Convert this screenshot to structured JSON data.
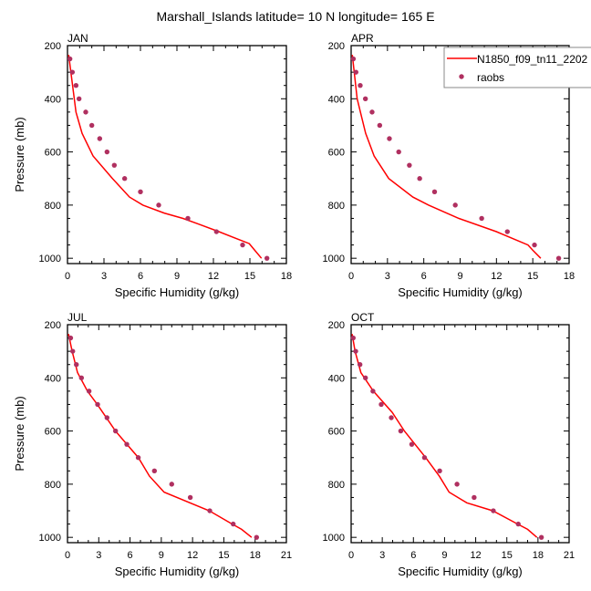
{
  "title": "Marshall_Islands  latitude= 10 N longitude= 165 E",
  "colors": {
    "model": "#ff0000",
    "obs": "#b03060"
  },
  "legend": {
    "placement": "top-right",
    "model_label": "N1850_f09_tn11_2202",
    "obs_label": "raobs"
  },
  "chart_data": [
    {
      "type": "line",
      "title": "JAN",
      "xlabel": "Specific Humidity (g/kg)",
      "ylabel": "Pressure (mb)",
      "xlim": [
        0,
        18
      ],
      "ylim": [
        200,
        1020
      ],
      "y_reversed": true,
      "xticks": [
        "0",
        "3",
        "6",
        "9",
        "12",
        "15",
        "18"
      ],
      "yticks": [
        "200",
        "400",
        "600",
        "800",
        "1000"
      ],
      "series": [
        {
          "name": "N1850_f09_tn11_2202",
          "kind": "line",
          "x": [
            0.1,
            0.7,
            1.2,
            2.1,
            3.7,
            5.1,
            6.2,
            7.95,
            9.5,
            10.7,
            12.45,
            14.95,
            15.4,
            15.95
          ],
          "y": [
            235,
            450,
            530,
            615,
            700,
            770,
            800,
            830,
            850,
            870,
            900,
            945,
            970,
            1000
          ]
        },
        {
          "name": "raobs",
          "kind": "scatter",
          "x": [
            0.2,
            0.4,
            0.7,
            0.95,
            1.5,
            2.0,
            2.65,
            3.25,
            3.85,
            4.7,
            6.0,
            7.5,
            9.9,
            12.25,
            14.4,
            16.4
          ],
          "y": [
            250,
            300,
            350,
            400,
            450,
            500,
            550,
            600,
            650,
            700,
            750,
            800,
            850,
            900,
            950,
            1000
          ]
        }
      ]
    },
    {
      "type": "line",
      "title": "APR",
      "xlabel": "Specific Humidity (g/kg)",
      "ylabel": "",
      "xlim": [
        0,
        18
      ],
      "ylim": [
        200,
        1020
      ],
      "y_reversed": true,
      "xticks": [
        "0",
        "3",
        "6",
        "9",
        "12",
        "15",
        "18"
      ],
      "yticks": [
        "200",
        "400",
        "600",
        "800",
        "1000"
      ],
      "series": [
        {
          "name": "N1850_f09_tn11_2202",
          "kind": "line",
          "x": [
            0.1,
            0.5,
            1.2,
            1.9,
            3.1,
            5.1,
            6.4,
            8.9,
            12.0,
            14.6,
            15.0,
            15.66
          ],
          "y": [
            235,
            400,
            530,
            615,
            700,
            770,
            800,
            850,
            900,
            950,
            970,
            1000
          ]
        },
        {
          "name": "raobs",
          "kind": "scatter",
          "x": [
            0.18,
            0.4,
            0.75,
            1.18,
            1.73,
            2.36,
            3.16,
            3.93,
            4.81,
            5.66,
            6.89,
            8.6,
            10.78,
            12.9,
            15.14,
            17.14
          ],
          "y": [
            250,
            300,
            350,
            400,
            450,
            500,
            550,
            600,
            650,
            700,
            750,
            800,
            850,
            900,
            950,
            1000
          ]
        }
      ]
    },
    {
      "type": "line",
      "title": "JUL",
      "xlabel": "Specific Humidity (g/kg)",
      "ylabel": "Pressure (mb)",
      "xlim": [
        0,
        21
      ],
      "ylim": [
        200,
        1020
      ],
      "y_reversed": true,
      "xticks": [
        "0",
        "3",
        "6",
        "9",
        "12",
        "15",
        "18",
        "21"
      ],
      "yticks": [
        "200",
        "400",
        "600",
        "800",
        "1000"
      ],
      "series": [
        {
          "name": "N1850_f09_tn11_2202",
          "kind": "line",
          "x": [
            0.1,
            0.45,
            0.96,
            1.92,
            2.86,
            4.6,
            6.8,
            7.87,
            9.27,
            13.6,
            15.8,
            16.7,
            17.67
          ],
          "y": [
            235,
            300,
            380,
            450,
            500,
            600,
            700,
            770,
            830,
            900,
            950,
            970,
            1000
          ]
        },
        {
          "name": "raobs",
          "kind": "scatter",
          "x": [
            0.3,
            0.5,
            0.85,
            1.34,
            2.07,
            2.89,
            3.79,
            4.61,
            5.69,
            6.79,
            8.34,
            10.0,
            11.78,
            13.65,
            15.9,
            18.14
          ],
          "y": [
            250,
            300,
            350,
            400,
            450,
            500,
            550,
            600,
            650,
            700,
            750,
            800,
            850,
            900,
            950,
            1000
          ]
        }
      ]
    },
    {
      "type": "line",
      "title": "OCT",
      "xlabel": "Specific Humidity (g/kg)",
      "ylabel": "",
      "xlim": [
        0,
        21
      ],
      "ylim": [
        200,
        1020
      ],
      "y_reversed": true,
      "xticks": [
        "0",
        "3",
        "6",
        "9",
        "12",
        "15",
        "18",
        "21"
      ],
      "yticks": [
        "200",
        "400",
        "600",
        "800",
        "1000"
      ],
      "series": [
        {
          "name": "N1850_f09_tn11_2202",
          "kind": "line",
          "x": [
            0.1,
            0.38,
            0.94,
            2.14,
            3.96,
            5.13,
            7.18,
            8.5,
            9.44,
            11.14,
            13.64,
            16.04,
            17.0,
            17.9
          ],
          "y": [
            235,
            300,
            380,
            450,
            530,
            600,
            700,
            770,
            830,
            870,
            900,
            950,
            970,
            1000
          ]
        },
        {
          "name": "raobs",
          "kind": "scatter",
          "x": [
            0.2,
            0.44,
            0.85,
            1.38,
            2.1,
            2.9,
            3.87,
            4.78,
            5.84,
            7.07,
            8.53,
            10.2,
            11.85,
            13.7,
            16.1,
            18.33
          ],
          "y": [
            250,
            300,
            350,
            400,
            450,
            500,
            550,
            600,
            650,
            700,
            750,
            800,
            850,
            900,
            950,
            1000
          ]
        }
      ]
    }
  ]
}
